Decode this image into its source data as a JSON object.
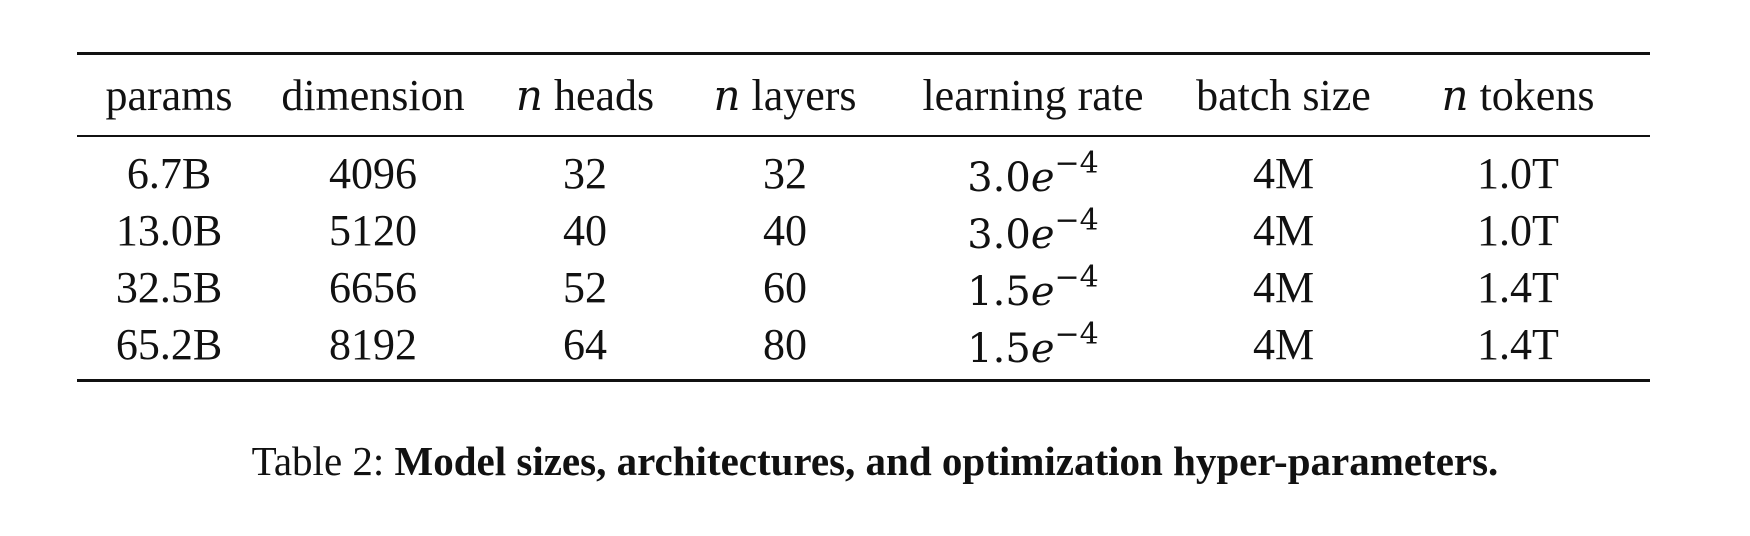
{
  "table": {
    "headers": [
      {
        "prefix": "",
        "label": "params"
      },
      {
        "prefix": "",
        "label": "dimension"
      },
      {
        "prefix": "n",
        "label": " heads"
      },
      {
        "prefix": "n",
        "label": " layers"
      },
      {
        "prefix": "",
        "label": "learning rate"
      },
      {
        "prefix": "",
        "label": "batch size"
      },
      {
        "prefix": "n",
        "label": " tokens"
      }
    ],
    "rows": [
      {
        "params": "6.7B",
        "dimension": "4096",
        "heads": "32",
        "layers": "32",
        "lr_mantissa": "3.0",
        "lr_base": "e",
        "lr_exponent": "−4",
        "batch_size": "4M",
        "tokens": "1.0T"
      },
      {
        "params": "13.0B",
        "dimension": "5120",
        "heads": "40",
        "layers": "40",
        "lr_mantissa": "3.0",
        "lr_base": "e",
        "lr_exponent": "−4",
        "batch_size": "4M",
        "tokens": "1.0T"
      },
      {
        "params": "32.5B",
        "dimension": "6656",
        "heads": "52",
        "layers": "60",
        "lr_mantissa": "1.5",
        "lr_base": "e",
        "lr_exponent": "−4",
        "batch_size": "4M",
        "tokens": "1.4T"
      },
      {
        "params": "65.2B",
        "dimension": "8192",
        "heads": "64",
        "layers": "80",
        "lr_mantissa": "1.5",
        "lr_base": "e",
        "lr_exponent": "−4",
        "batch_size": "4M",
        "tokens": "1.4T"
      }
    ]
  },
  "caption": {
    "lead": "Table 2: ",
    "text": "Model sizes, architectures, and optimization hyper-parameters."
  }
}
